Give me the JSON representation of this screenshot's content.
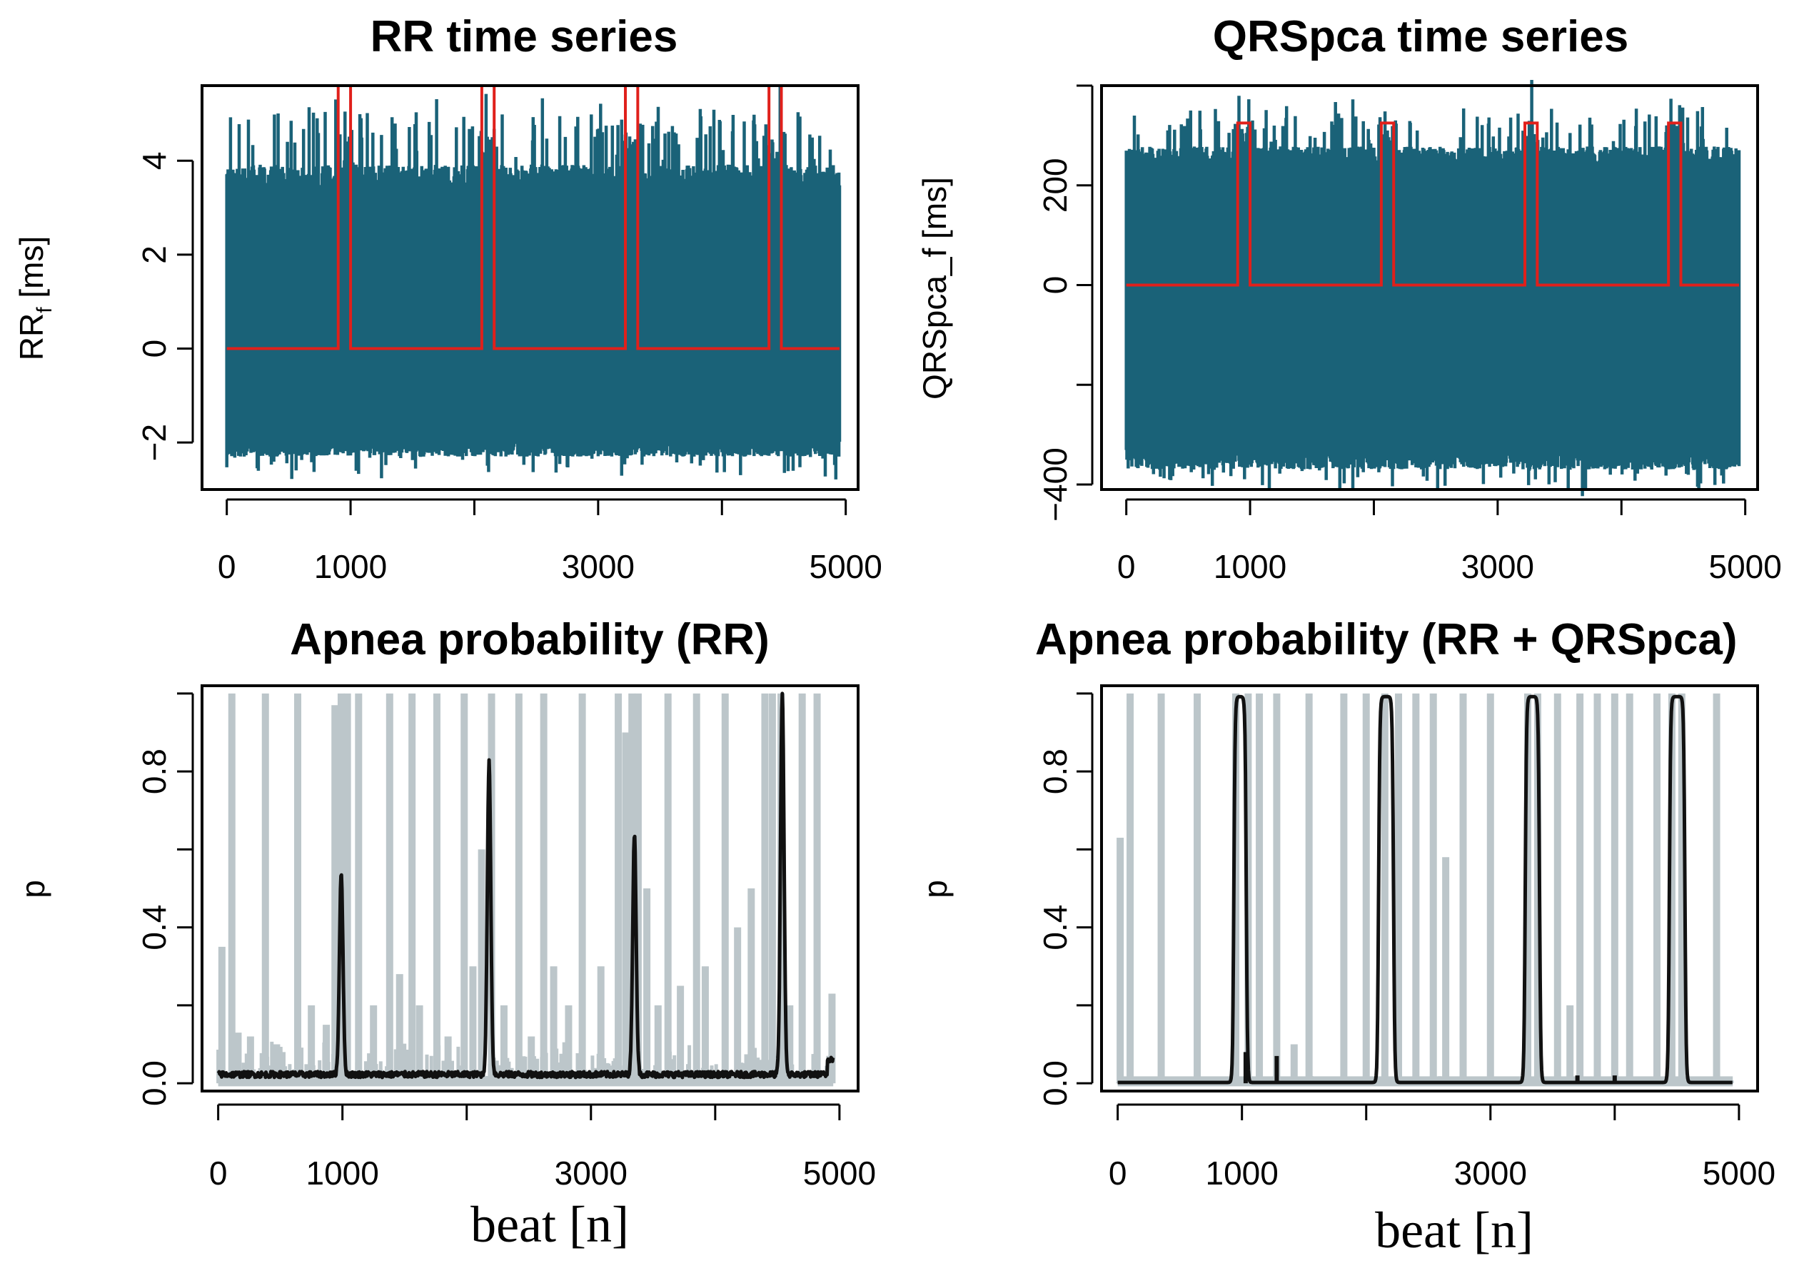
{
  "colors": {
    "signal": "#1a6278",
    "marker": "#e0201b",
    "gray": "#bcc6ca",
    "mean": "#111111",
    "axis": "#000000"
  },
  "chart_data": [
    {
      "id": "rr",
      "type": "line",
      "title": "RR time series",
      "ylabel_main": "RR",
      "ylabel_sub": "f",
      "ylabel_rest": " [ms]",
      "xlabel": "",
      "xlim": [
        -200,
        5100
      ],
      "ylim": [
        -3.0,
        5.6
      ],
      "xticks": [
        0,
        1000,
        3000,
        5000
      ],
      "xtick_marks": [
        0,
        1000,
        2000,
        3000,
        4000,
        5000
      ],
      "yticks": [
        -2,
        0,
        2,
        4
      ],
      "ytick_labels": [
        "−2",
        "0",
        "2",
        "4"
      ],
      "signal": {
        "upper_base": 3.5,
        "upper_noise": 0.6,
        "lower_base": -1.95,
        "lower_noise": 0.35
      },
      "apnea_intervals": [
        [
          900,
          1000
        ],
        [
          2060,
          2160
        ],
        [
          3220,
          3320
        ],
        [
          4380,
          4480
        ]
      ],
      "marker_low": 0,
      "marker_high": 5.6
    },
    {
      "id": "qrs",
      "type": "line",
      "title": "QRSpca time series",
      "ylabel_main": "QRSpca_f [ms]",
      "ylabel_sub": "",
      "ylabel_rest": "",
      "xlabel": "",
      "xlim": [
        -200,
        5100
      ],
      "ylim": [
        -410,
        400
      ],
      "xticks": [
        0,
        1000,
        3000,
        5000
      ],
      "xtick_marks": [
        0,
        1000,
        2000,
        3000,
        4000,
        5000
      ],
      "yticks": [
        -400,
        -200,
        0,
        200,
        400
      ],
      "ytick_labels": [
        "−400",
        "",
        "0",
        "200",
        ""
      ],
      "signal": {
        "upper_base": 250,
        "upper_noise": 40,
        "lower_base": -330,
        "lower_noise": 40
      },
      "apnea_intervals": [
        [
          900,
          1000
        ],
        [
          2060,
          2160
        ],
        [
          3220,
          3320
        ],
        [
          4380,
          4480
        ]
      ],
      "marker_low": 0,
      "marker_high": 325
    },
    {
      "id": "prr",
      "type": "line",
      "title": "Apnea probability (RR)",
      "ylabel_main": "p",
      "ylabel_sub": "",
      "ylabel_rest": "",
      "xlabel": "beat [n]",
      "xlim": [
        -130,
        5150
      ],
      "ylim": [
        -0.02,
        1.02
      ],
      "xticks": [
        0,
        1000,
        3000,
        5000
      ],
      "xtick_marks": [
        0,
        1000,
        2000,
        3000,
        4000,
        5000
      ],
      "yticks": [
        0.0,
        0.2,
        0.4,
        0.6,
        0.8,
        1.0
      ],
      "ytick_labels": [
        "0.0",
        "",
        "0.4",
        "",
        "0.8",
        ""
      ],
      "gray_spikes": [
        [
          30,
          0.35
        ],
        [
          110,
          1.0
        ],
        [
          160,
          0.13
        ],
        [
          260,
          0.12
        ],
        [
          380,
          1.0
        ],
        [
          470,
          0.1
        ],
        [
          640,
          1.0
        ],
        [
          750,
          0.2
        ],
        [
          870,
          0.15
        ],
        [
          940,
          0.97
        ],
        [
          990,
          1.0
        ],
        [
          1040,
          1.0
        ],
        [
          1130,
          1.0
        ],
        [
          1250,
          0.2
        ],
        [
          1380,
          1.0
        ],
        [
          1460,
          0.28
        ],
        [
          1560,
          1.0
        ],
        [
          1620,
          0.2
        ],
        [
          1760,
          1.0
        ],
        [
          1850,
          0.12
        ],
        [
          1980,
          1.0
        ],
        [
          2050,
          0.3
        ],
        [
          2120,
          0.6
        ],
        [
          2200,
          1.0
        ],
        [
          2300,
          0.2
        ],
        [
          2420,
          1.0
        ],
        [
          2520,
          0.12
        ],
        [
          2620,
          1.0
        ],
        [
          2700,
          0.3
        ],
        [
          2820,
          0.2
        ],
        [
          2930,
          1.0
        ],
        [
          3080,
          0.3
        ],
        [
          3220,
          1.0
        ],
        [
          3280,
          0.9
        ],
        [
          3330,
          1.0
        ],
        [
          3380,
          1.0
        ],
        [
          3450,
          0.5
        ],
        [
          3540,
          0.2
        ],
        [
          3620,
          1.0
        ],
        [
          3720,
          0.25
        ],
        [
          3850,
          1.0
        ],
        [
          3920,
          0.3
        ],
        [
          4080,
          1.0
        ],
        [
          4180,
          0.4
        ],
        [
          4290,
          0.5
        ],
        [
          4400,
          1.0
        ],
        [
          4460,
          1.0
        ],
        [
          4530,
          1.0
        ],
        [
          4600,
          0.2
        ],
        [
          4700,
          1.0
        ],
        [
          4820,
          1.0
        ],
        [
          4940,
          0.23
        ]
      ],
      "mean_peaks": [
        [
          990,
          0.52,
          14
        ],
        [
          2180,
          0.8,
          14
        ],
        [
          3350,
          0.62,
          14
        ],
        [
          4540,
          0.98,
          14
        ]
      ],
      "mean_baseline": 0.015
    },
    {
      "id": "pqrs",
      "type": "line",
      "title": "Apnea probability (RR + QRSpca)",
      "ylabel_main": "p",
      "ylabel_sub": "",
      "ylabel_rest": "",
      "xlabel": "beat [n]",
      "xlim": [
        -130,
        5150
      ],
      "ylim": [
        -0.02,
        1.02
      ],
      "xticks": [
        0,
        1000,
        3000,
        5000
      ],
      "xtick_marks": [
        0,
        1000,
        2000,
        3000,
        4000,
        5000
      ],
      "yticks": [
        0.0,
        0.2,
        0.4,
        0.6,
        0.8,
        1.0
      ],
      "ytick_labels": [
        "0.0",
        "",
        "0.4",
        "",
        "0.8",
        ""
      ],
      "gray_spikes": [
        [
          20,
          0.63
        ],
        [
          100,
          1.0
        ],
        [
          350,
          1.0
        ],
        [
          640,
          1.0
        ],
        [
          950,
          1.0
        ],
        [
          1050,
          1.0
        ],
        [
          1140,
          1.0
        ],
        [
          1280,
          1.0
        ],
        [
          1420,
          0.1
        ],
        [
          1540,
          1.0
        ],
        [
          1820,
          1.0
        ],
        [
          2000,
          1.0
        ],
        [
          2150,
          1.0
        ],
        [
          2260,
          1.0
        ],
        [
          2400,
          1.0
        ],
        [
          2540,
          1.0
        ],
        [
          2640,
          0.58
        ],
        [
          2780,
          1.0
        ],
        [
          3000,
          1.0
        ],
        [
          3300,
          1.0
        ],
        [
          3380,
          1.0
        ],
        [
          3540,
          1.0
        ],
        [
          3640,
          0.2
        ],
        [
          3720,
          1.0
        ],
        [
          3860,
          1.0
        ],
        [
          4000,
          1.0
        ],
        [
          4120,
          1.0
        ],
        [
          4340,
          1.0
        ],
        [
          4460,
          1.0
        ],
        [
          4540,
          1.0
        ],
        [
          4820,
          1.0
        ]
      ],
      "mean_blocks": [
        [
          935,
          1035
        ],
        [
          2100,
          2220
        ],
        [
          3280,
          3395
        ],
        [
          4440,
          4565
        ]
      ],
      "mean_small": [
        [
          1030,
          0.08
        ],
        [
          1280,
          0.07
        ],
        [
          3700,
          0.02
        ],
        [
          4000,
          0.02
        ]
      ],
      "mean_baseline": 0.002
    }
  ]
}
